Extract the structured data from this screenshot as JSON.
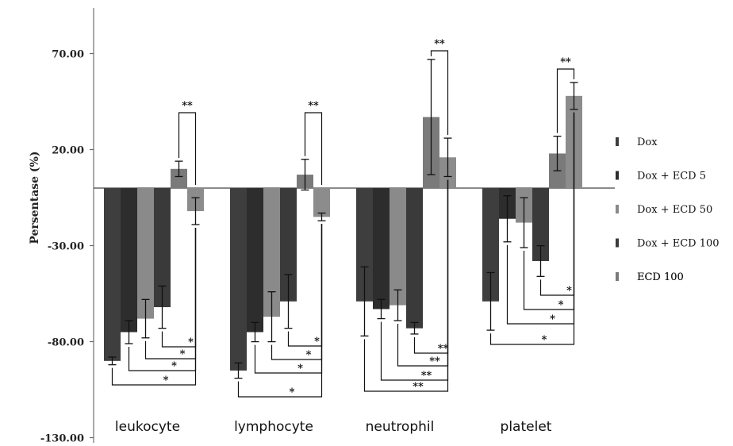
{
  "chart_data": {
    "type": "bar",
    "title": "",
    "xlabel": "",
    "ylabel": "Persentase (%)",
    "ylim": [
      -130,
      90
    ],
    "yticks": [
      "70.00",
      "20.00",
      "-30.00",
      "-80.00",
      "-130.00"
    ],
    "ytick_values": [
      70,
      20,
      -30,
      -80,
      -130
    ],
    "categories": [
      "leukocyte",
      "lymphocyte",
      "neutrophil",
      "platelet"
    ],
    "series": [
      {
        "name": "Dox",
        "color": "#3e3e3e",
        "values": [
          -90,
          -95,
          -59,
          -59
        ],
        "errors": [
          2,
          4,
          18,
          15
        ]
      },
      {
        "name": "Dox + ECD 5",
        "color": "#2d2d2d",
        "values": [
          -75,
          -75,
          -63,
          -16
        ],
        "errors": [
          6,
          5,
          5,
          12
        ]
      },
      {
        "name": "Dox + ECD 50",
        "color": "#8a8a8a",
        "values": [
          -68,
          -67,
          -61,
          -18
        ],
        "errors": [
          10,
          13,
          8,
          13
        ]
      },
      {
        "name": "Dox + ECD 100",
        "color": "#3a3a3a",
        "values": [
          -62,
          -59,
          -73,
          -38
        ],
        "errors": [
          11,
          14,
          3,
          8
        ]
      },
      {
        "name": "ECD 100",
        "color": "#7a7a7a",
        "values": [
          10,
          7,
          37,
          18
        ],
        "errors": [
          4,
          8,
          30,
          9
        ]
      },
      {
        "name": "",
        "color": "#8c8c8c",
        "values": [
          -12,
          -15,
          16,
          48
        ],
        "errors": [
          7,
          2,
          10,
          7
        ]
      }
    ],
    "significance": {
      "single": "*",
      "double": "**"
    },
    "grid": false,
    "legend_position": "right"
  }
}
